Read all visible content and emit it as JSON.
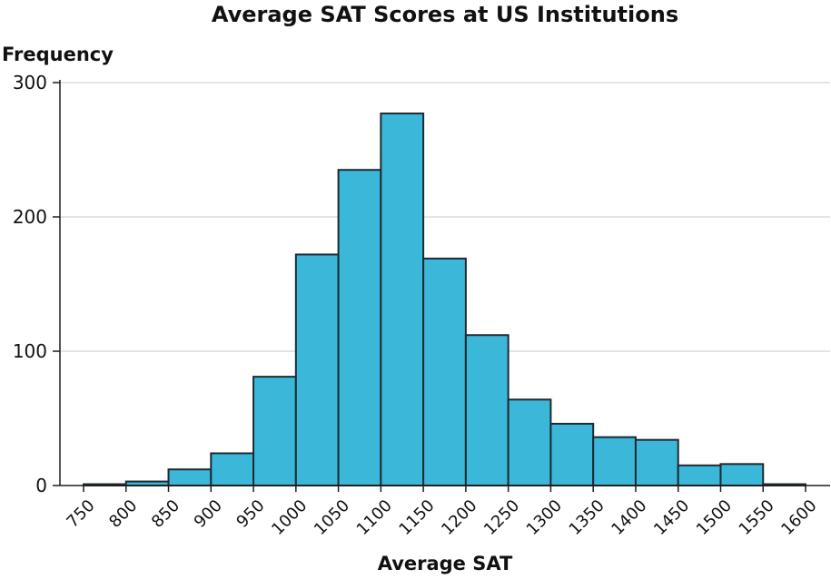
{
  "chart_data": {
    "type": "bar",
    "title": "Average SAT Scores at US Institutions",
    "xlabel": "Average SAT",
    "ylabel": "Frequency",
    "bin_edges": [
      750,
      800,
      850,
      900,
      950,
      1000,
      1050,
      1100,
      1150,
      1200,
      1250,
      1300,
      1350,
      1400,
      1450,
      1500,
      1550,
      1600
    ],
    "values": [
      1,
      3,
      12,
      24,
      81,
      172,
      235,
      277,
      169,
      112,
      64,
      46,
      36,
      34,
      15,
      16,
      1
    ],
    "xlim": [
      750,
      1600
    ],
    "ylim": [
      0,
      300
    ],
    "yticks": [
      0,
      100,
      200,
      300
    ],
    "xticks": [
      "750",
      "800",
      "850",
      "900",
      "950",
      "1000",
      "1050",
      "1100",
      "1150",
      "1200",
      "1250",
      "1300",
      "1350",
      "1400",
      "1450",
      "1500",
      "1550",
      "1600"
    ],
    "grid": true,
    "bar_color": "#3bb8d9",
    "bar_edge_color": "#1e2a30",
    "grid_color": "#c8c8c8"
  }
}
